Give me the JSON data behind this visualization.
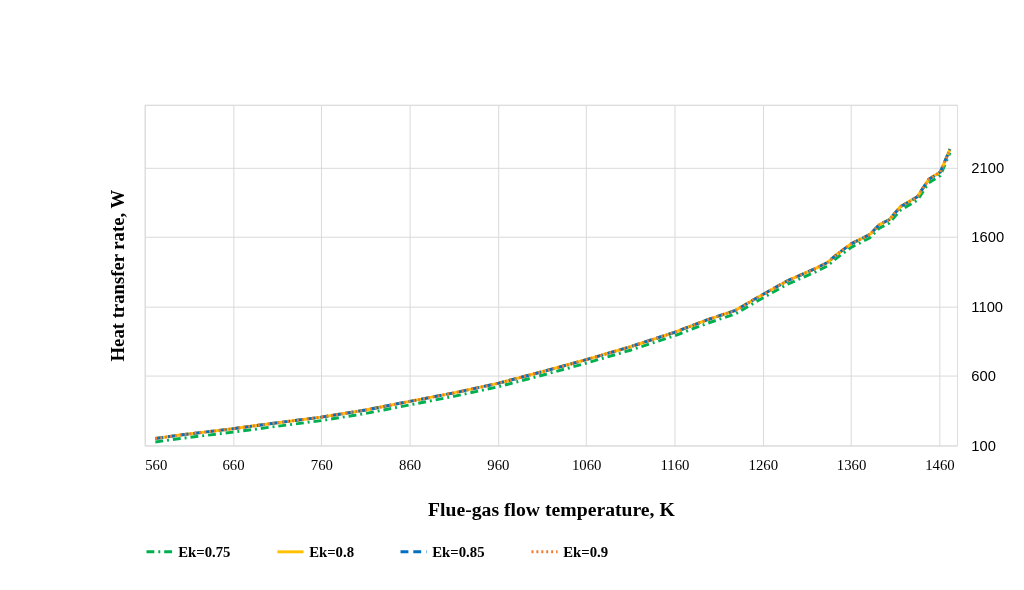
{
  "chart_data": {
    "type": "line",
    "xlabel": "Flue-gas flow temperature, K",
    "ylabel": "Heat transfer rate, W",
    "x": [
      572,
      600,
      630,
      660,
      700,
      760,
      810,
      860,
      910,
      960,
      1010,
      1060,
      1110,
      1160,
      1196,
      1229,
      1260,
      1288,
      1318,
      1333,
      1344,
      1360,
      1381,
      1392,
      1403,
      1416,
      1435,
      1448,
      1461,
      1472
    ],
    "series": [
      {
        "name": "Ek=0.75",
        "color": "#00b050",
        "line_style": "dashdot",
        "values": [
          125,
          150,
          173,
          196,
          230,
          279,
          330,
          392,
          453,
          522,
          605,
          692,
          785,
          889,
          976,
          1047,
          1161,
          1260,
          1343,
          1390,
          1450,
          1525,
          1592,
          1663,
          1698,
          1793,
          1864,
          1989,
          2041,
          2206
        ]
      },
      {
        "name": "Ek=0.8",
        "color": "#ffc000",
        "line_style": "solid",
        "values": [
          150,
          175,
          198,
          221,
          255,
          304,
          355,
          417,
          478,
          547,
          630,
          717,
          810,
          914,
          1001,
          1072,
          1186,
          1285,
          1368,
          1415,
          1475,
          1550,
          1617,
          1688,
          1723,
          1818,
          1889,
          2014,
          2066,
          2231
        ]
      },
      {
        "name": "Ek=0.85",
        "color": "#0070c0",
        "line_style": "dashed",
        "values": [
          150,
          175,
          198,
          221,
          255,
          304,
          355,
          417,
          478,
          547,
          630,
          717,
          810,
          914,
          1001,
          1072,
          1186,
          1285,
          1368,
          1415,
          1475,
          1550,
          1617,
          1688,
          1723,
          1818,
          1889,
          2014,
          2066,
          2231
        ]
      },
      {
        "name": "Ek=0.9",
        "color": "#ed7d31",
        "line_style": "dotted",
        "values": [
          150,
          175,
          198,
          221,
          255,
          304,
          355,
          417,
          478,
          547,
          630,
          717,
          810,
          914,
          1001,
          1072,
          1186,
          1285,
          1368,
          1415,
          1475,
          1550,
          1617,
          1688,
          1723,
          1818,
          1889,
          2014,
          2066,
          2231
        ]
      }
    ],
    "xlim": [
      560,
      1480
    ],
    "xticks": [
      560,
      660,
      760,
      860,
      960,
      1060,
      1160,
      1260,
      1360,
      1460
    ],
    "ylim": [
      100,
      2550
    ],
    "yticks": [
      100,
      600,
      1100,
      1600,
      2100,
      {
        "value": 2550,
        "label": null
      }
    ],
    "grid": true,
    "legend": "bottom"
  }
}
